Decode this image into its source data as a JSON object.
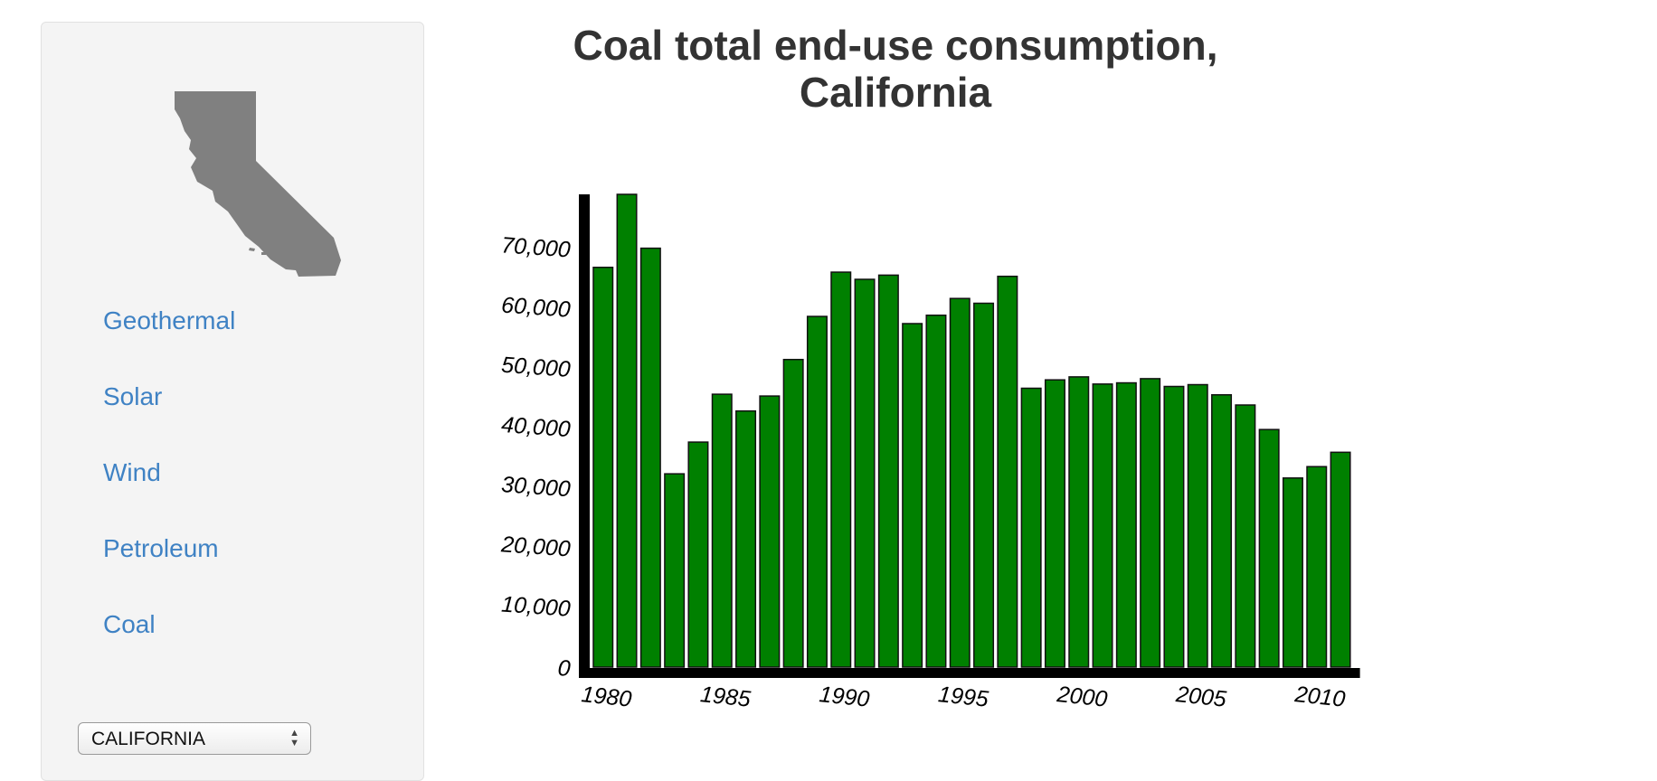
{
  "sidebar": {
    "map_label": "California state outline",
    "nav_items": [
      "Geothermal",
      "Solar",
      "Wind",
      "Petroleum",
      "Coal"
    ],
    "state_select": {
      "selected": "CALIFORNIA"
    }
  },
  "colors": {
    "bar_fill": "#008000",
    "bar_stroke": "#111111",
    "axis": "#000000",
    "map_fill": "#808080",
    "link": "#3f82c4"
  },
  "chart_data": {
    "type": "bar",
    "title_line1": "Coal total end-use consumption,",
    "title_line2": "California",
    "xlabel": "",
    "ylabel": "",
    "ylim": [
      0,
      79000
    ],
    "y_ticks": [
      0,
      10000,
      20000,
      30000,
      40000,
      50000,
      60000,
      70000
    ],
    "y_tick_labels": [
      "0",
      "10,000",
      "20,000",
      "30,000",
      "40,000",
      "50,000",
      "60,000",
      "70,000"
    ],
    "x_tick_labels": [
      "1980",
      "1985",
      "1990",
      "1995",
      "2000",
      "2005",
      "2010"
    ],
    "x_tick_years": [
      1980,
      1985,
      1990,
      1995,
      2000,
      2005,
      2010
    ],
    "grid": false,
    "categories": [
      1980,
      1981,
      1982,
      1983,
      1984,
      1985,
      1986,
      1987,
      1988,
      1989,
      1990,
      1991,
      1992,
      1993,
      1994,
      1995,
      1996,
      1997,
      1998,
      1999,
      2000,
      2001,
      2002,
      2003,
      2004,
      2005,
      2006,
      2007,
      2008,
      2009,
      2010,
      2011
    ],
    "values": [
      66800,
      79000,
      70000,
      32300,
      37600,
      45600,
      42800,
      45300,
      51400,
      58600,
      66000,
      64800,
      65500,
      57400,
      58800,
      61600,
      60800,
      65300,
      46600,
      48000,
      48500,
      47300,
      47500,
      48200,
      46900,
      47200,
      45500,
      43800,
      39700,
      31600,
      33500,
      35900
    ]
  }
}
